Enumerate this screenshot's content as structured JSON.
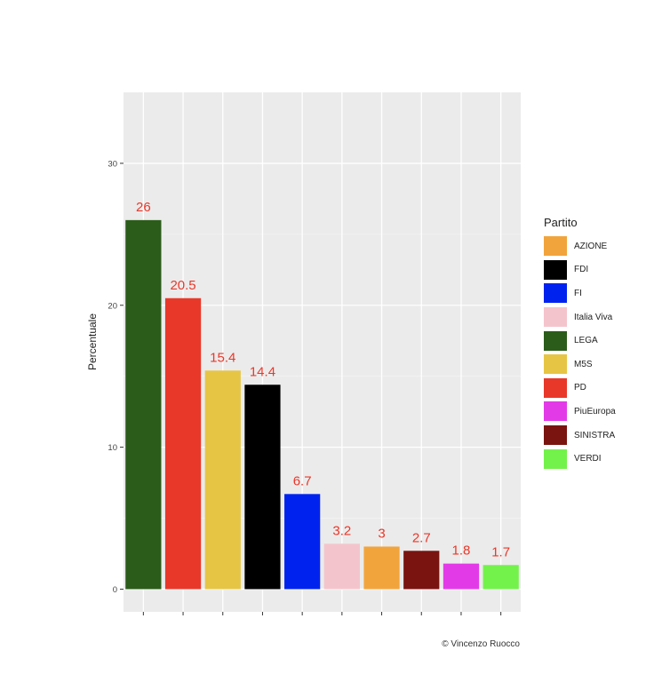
{
  "chart_data": {
    "type": "bar",
    "categories": [
      "LEGA",
      "PD",
      "M5S",
      "FDI",
      "FI",
      "Italia Viva",
      "AZIONE",
      "SINISTRA",
      "PiuEuropa",
      "VERDI"
    ],
    "values": [
      26,
      20.5,
      15.4,
      14.4,
      6.7,
      3.2,
      3,
      2.7,
      1.8,
      1.7
    ],
    "value_labels": [
      "26",
      "20.5",
      "15.4",
      "14.4",
      "6.7",
      "3.2",
      "3",
      "2.7",
      "1.8",
      "1.7"
    ],
    "colors": [
      "#2b5c1a",
      "#e8382a",
      "#e6c545",
      "#000000",
      "#0022ee",
      "#f4c4cc",
      "#f2a43c",
      "#7a1410",
      "#e33ae8",
      "#73f24b"
    ],
    "ylabel": "Percentuale",
    "xlabel": "",
    "ylim": [
      -1.6,
      35
    ],
    "yticks": [
      0,
      10,
      20,
      30
    ],
    "ytick_labels": [
      "0",
      "10",
      "20",
      "30"
    ],
    "grid": true,
    "label_color": "#e8382a",
    "legend": {
      "title": "Partito",
      "position": "right",
      "items": [
        {
          "label": "AZIONE",
          "color": "#f2a43c"
        },
        {
          "label": "FDI",
          "color": "#000000"
        },
        {
          "label": "FI",
          "color": "#0022ee"
        },
        {
          "label": "Italia Viva",
          "color": "#f4c4cc"
        },
        {
          "label": "LEGA",
          "color": "#2b5c1a"
        },
        {
          "label": "M5S",
          "color": "#e6c545"
        },
        {
          "label": "PD",
          "color": "#e8382a"
        },
        {
          "label": "PiuEuropa",
          "color": "#e33ae8"
        },
        {
          "label": "SINISTRA",
          "color": "#7a1410"
        },
        {
          "label": "VERDI",
          "color": "#73f24b"
        }
      ]
    }
  },
  "credit": "© Vincenzo Ruocco"
}
